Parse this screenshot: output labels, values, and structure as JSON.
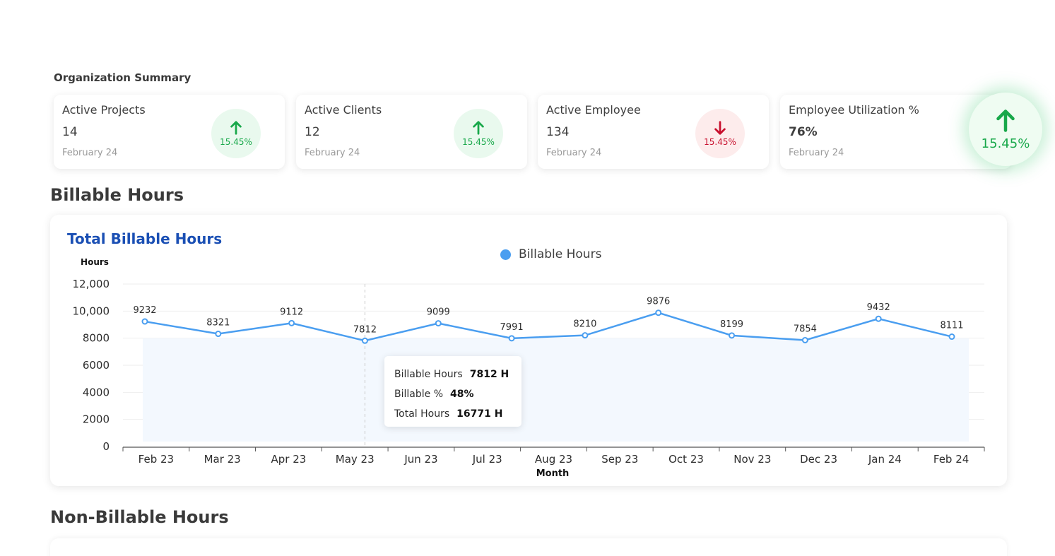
{
  "org_summary": {
    "title": "Organization Summary",
    "cards": [
      {
        "label": "Active Projects",
        "value": "14",
        "date": "February 24",
        "change": "15.45%",
        "direction": "up"
      },
      {
        "label": "Active Clients",
        "value": "12",
        "date": "February 24",
        "change": "15.45%",
        "direction": "up"
      },
      {
        "label": "Active Employee",
        "value": "134",
        "date": "February 24",
        "change": "15.45%",
        "direction": "down"
      },
      {
        "label": "Employee Utilization %",
        "value": "76%",
        "date": "February 24",
        "change": "15.45%",
        "direction": "up"
      }
    ]
  },
  "billable": {
    "section_title": "Billable Hours",
    "chart_title": "Total Billable Hours",
    "tooltip": {
      "hours_label": "Billable Hours",
      "hours_value": "7812 H",
      "pct_label": "Billable %",
      "pct_value": "48%",
      "total_label": "Total Hours",
      "total_value": "16771 H"
    }
  },
  "non_billable": {
    "section_title": "Non-Billable Hours"
  },
  "colors": {
    "line": "#4a9ef0",
    "area": "#f3f8fe",
    "title_blue": "#1a4fb4",
    "up_green": "#18a84a",
    "down_red": "#c8102e"
  },
  "chart_data": {
    "type": "line",
    "categories": [
      "Feb 23",
      "Mar 23",
      "Apr 23",
      "May 23",
      "Jun 23",
      "Jul 23",
      "Aug 23",
      "Sep 23",
      "Oct 23",
      "Nov 23",
      "Dec 23",
      "Jan 24",
      "Feb 24"
    ],
    "series": [
      {
        "name": "Billable Hours",
        "values": [
          9232,
          8321,
          9112,
          7812,
          9099,
          7991,
          8210,
          9876,
          8199,
          7854,
          9432,
          8111,
          null
        ]
      }
    ],
    "point_labels": [
      "9232",
      "8321",
      "9112",
      "7812",
      "9099",
      "7991",
      "8210",
      "9876",
      "8199",
      "7854",
      "9432",
      "8111"
    ],
    "xlabel": "Month",
    "ylabel": "Hours",
    "ylim": [
      0,
      12000
    ],
    "yticks": [
      0,
      2000,
      4000,
      6000,
      8000,
      10000,
      12000
    ],
    "ytick_labels": [
      "0",
      "2000",
      "4000",
      "6000",
      "8000",
      "10,000",
      "12,000"
    ],
    "highlighted_category": "May 23",
    "legend_position": "top-center",
    "grid": true
  }
}
